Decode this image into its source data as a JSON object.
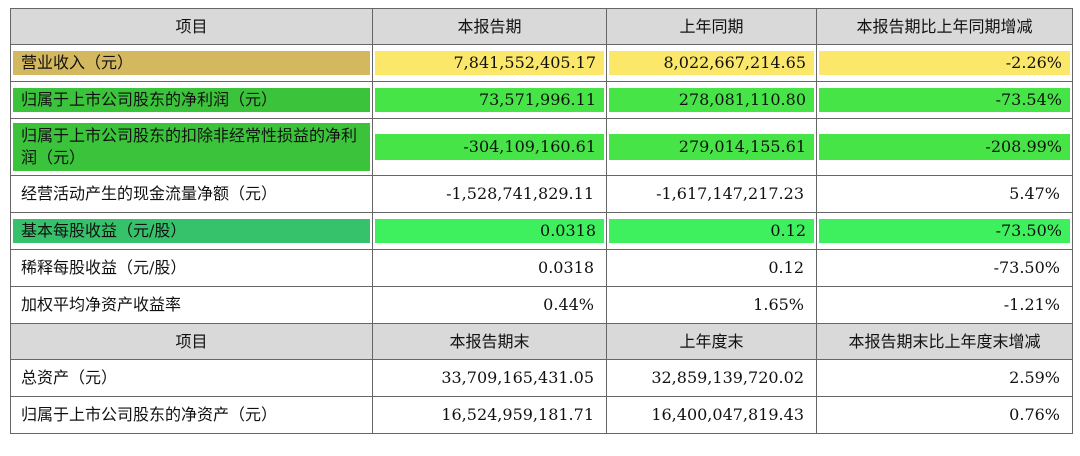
{
  "table": {
    "header1": [
      "项目",
      "本报告期",
      "上年同期",
      "本报告期比上年同期增减"
    ],
    "rows1": [
      {
        "label": "营业收入（元）",
        "current": "7,841,552,405.17",
        "prior": "8,022,667,214.65",
        "change": "-2.26%",
        "highlight": "yellow"
      },
      {
        "label": "归属于上市公司股东的净利润（元）",
        "current": "73,571,996.11",
        "prior": "278,081,110.80",
        "change": "-73.54%",
        "highlight": "green"
      },
      {
        "label": "归属于上市公司股东的扣除非经常性损益的净利润（元）",
        "current": "-304,109,160.61",
        "prior": "279,014,155.61",
        "change": "-208.99%",
        "highlight": "green"
      },
      {
        "label": "经营活动产生的现金流量净额（元）",
        "current": "-1,528,741,829.11",
        "prior": "-1,617,147,217.23",
        "change": "5.47%",
        "highlight": "none"
      },
      {
        "label": "基本每股收益（元/股）",
        "current": "0.0318",
        "prior": "0.12",
        "change": "-73.50%",
        "highlight": "green2"
      },
      {
        "label": "稀释每股收益（元/股）",
        "current": "0.0318",
        "prior": "0.12",
        "change": "-73.50%",
        "highlight": "none"
      },
      {
        "label": "加权平均净资产收益率",
        "current": "0.44%",
        "prior": "1.65%",
        "change": "-1.21%",
        "highlight": "none"
      }
    ],
    "header2": [
      "项目",
      "本报告期末",
      "上年度末",
      "本报告期末比上年度末增减"
    ],
    "rows2": [
      {
        "label": "总资产（元）",
        "current": "33,709,165,431.05",
        "prior": "32,859,139,720.02",
        "change": "2.59%"
      },
      {
        "label": "归属于上市公司股东的净资产（元）",
        "current": "16,524,959,181.71",
        "prior": "16,400,047,819.43",
        "change": "0.76%"
      }
    ]
  }
}
